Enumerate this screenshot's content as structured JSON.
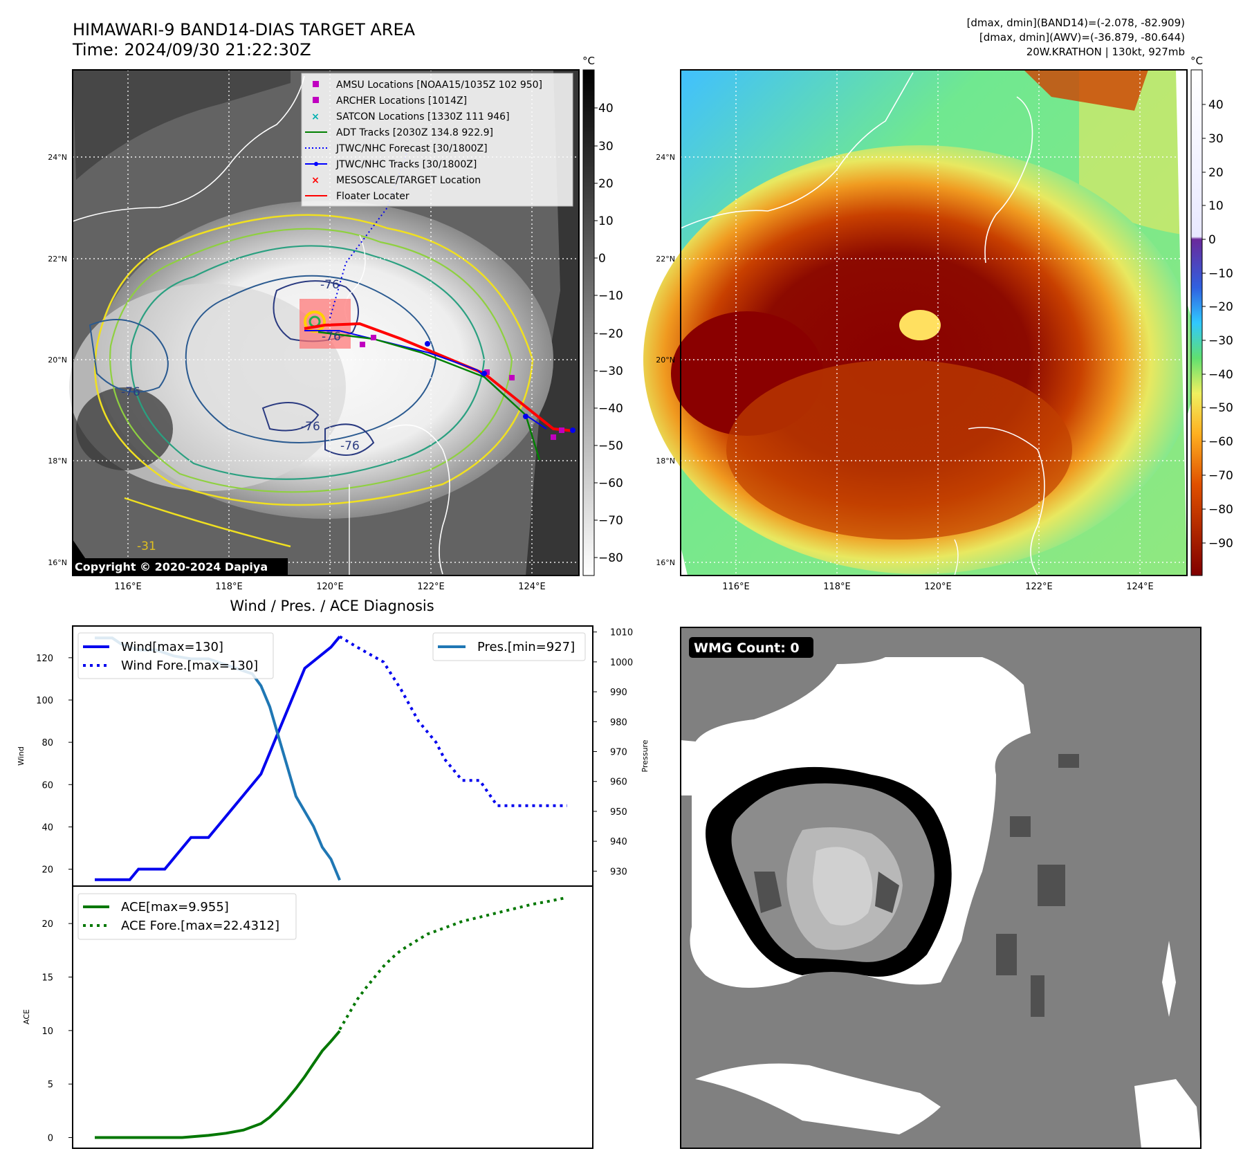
{
  "header": {
    "title": "HIMAWARI-9 BAND14-DIAS TARGET AREA",
    "time": "Time: 2024/09/30 21:22:30Z",
    "info1": "[dmax, dmin](BAND14)=(-2.078, -82.909)",
    "info2": "[dmax, dmin](AWV)=(-36.879, -80.644)",
    "info3": "20W.KRATHON | 130kt, 927mb"
  },
  "map": {
    "lat_labels": [
      "24°N",
      "22°N",
      "20°N",
      "18°N",
      "16°N"
    ],
    "lon_labels": [
      "116°E",
      "118°E",
      "120°E",
      "122°E",
      "124°E"
    ],
    "unit": "°C",
    "contour_labels": [
      "-76",
      "-76",
      "-76",
      "-76",
      "-76",
      "-31"
    ],
    "copyright": "Copyright © 2020-2024 Dapiya",
    "legend": [
      {
        "label": "AMSU Locations [NOAA15/1035Z 102 950]",
        "color": "#c000c0",
        "marker": "square"
      },
      {
        "label": "ARCHER Locations [1014Z]",
        "color": "#c000c0",
        "marker": "square"
      },
      {
        "label": "SATCON Locations [1330Z 111 946]",
        "color": "#00b0b0",
        "marker": "x"
      },
      {
        "label": "ADT Tracks [2030Z 134.8 922.9]",
        "color": "#008000",
        "marker": "line"
      },
      {
        "label": "JTWC/NHC Forecast [30/1800Z]",
        "color": "#0000ff",
        "marker": "dotted"
      },
      {
        "label": "JTWC/NHC Tracks [30/1800Z]",
        "color": "#0000ff",
        "marker": "line-dot"
      },
      {
        "label": "MESOSCALE/TARGET Location",
        "color": "#ff0000",
        "marker": "x"
      },
      {
        "label": "Floater Locater",
        "color": "#ff0000",
        "marker": "line"
      }
    ]
  },
  "colorbar_gray": {
    "ticks": [
      "40",
      "30",
      "20",
      "10",
      "0",
      "−10",
      "−20",
      "−30",
      "−40",
      "−50",
      "−60",
      "−70",
      "−80"
    ]
  },
  "colorbar_color": {
    "ticks": [
      "40",
      "30",
      "20",
      "10",
      "0",
      "−10",
      "−20",
      "−30",
      "−40",
      "−50",
      "−60",
      "−70",
      "−80",
      "−90"
    ]
  },
  "wmg": {
    "label": "WMG Count: 0"
  },
  "chart_data": [
    {
      "type": "line",
      "title": "Wind / Pres. / ACE Diagnosis",
      "ylabel": "Wind",
      "y2label": "Pressure",
      "ylim": [
        12,
        135
      ],
      "y2lim": [
        925,
        1012
      ],
      "yticks": [
        20,
        40,
        60,
        80,
        100,
        120
      ],
      "y2ticks": [
        930,
        940,
        950,
        960,
        970,
        980,
        990,
        1000,
        1010
      ],
      "legend_left": [
        "Wind[max=130]",
        "Wind Fore.[max=130]"
      ],
      "legend_right": [
        "Pres.[min=927]"
      ],
      "series": [
        {
          "name": "Wind[max=130]",
          "axis": "left",
          "color": "#0000ee",
          "style": "solid",
          "x": [
            0,
            4,
            5,
            8,
            11,
            13,
            14,
            16,
            17,
            19,
            21,
            24,
            27,
            28
          ],
          "values": [
            15,
            15,
            20,
            20,
            35,
            35,
            40,
            50,
            55,
            65,
            85,
            115,
            125,
            130
          ]
        },
        {
          "name": "Wind Fore.[max=130]",
          "axis": "left",
          "color": "#0000ee",
          "style": "dotted",
          "x": [
            28,
            30,
            33,
            35,
            37,
            39,
            40,
            42,
            43,
            44,
            46,
            48,
            50,
            52,
            54
          ],
          "values": [
            130,
            125,
            118,
            105,
            90,
            80,
            72,
            62,
            62,
            62,
            50,
            50,
            50,
            50,
            50
          ]
        },
        {
          "name": "Pres.[min=927]",
          "axis": "right",
          "color": "#1f77b4",
          "style": "solid",
          "x": [
            0,
            2,
            3,
            5,
            7,
            9,
            11,
            13,
            15,
            17,
            18,
            19,
            20,
            21,
            22,
            23,
            25,
            26,
            27,
            28
          ],
          "values": [
            1008,
            1008,
            1006,
            1004,
            1004,
            1002,
            1001,
            1001,
            999,
            997,
            996,
            992,
            985,
            975,
            965,
            955,
            945,
            938,
            934,
            927
          ]
        }
      ]
    },
    {
      "type": "line",
      "ylabel": "ACE",
      "ylim": [
        -1,
        23.5
      ],
      "yticks": [
        0,
        5,
        10,
        15,
        20
      ],
      "legend": [
        "ACE[max=9.955]",
        "ACE Fore.[max=22.4312]"
      ],
      "series": [
        {
          "name": "ACE[max=9.955]",
          "color": "#007700",
          "style": "solid",
          "x": [
            0,
            5,
            10,
            13,
            15,
            17,
            19,
            20,
            21,
            22,
            23,
            24,
            25,
            26,
            27,
            28
          ],
          "values": [
            0,
            0,
            0,
            0.2,
            0.4,
            0.7,
            1.3,
            1.9,
            2.7,
            3.6,
            4.6,
            5.7,
            6.9,
            8.1,
            9.0,
            9.955
          ]
        },
        {
          "name": "ACE Fore.[max=22.4312]",
          "color": "#007700",
          "style": "dotted",
          "x": [
            28,
            29,
            30,
            31,
            32,
            33,
            34,
            35,
            36,
            37,
            38,
            39,
            40,
            41,
            42,
            44,
            46,
            48,
            50,
            52,
            54
          ],
          "values": [
            10.1,
            11.5,
            12.9,
            14.0,
            15.0,
            16.0,
            16.8,
            17.5,
            18.0,
            18.5,
            19.0,
            19.3,
            19.6,
            19.9,
            20.2,
            20.6,
            21.0,
            21.4,
            21.8,
            22.1,
            22.4312
          ]
        }
      ]
    }
  ]
}
